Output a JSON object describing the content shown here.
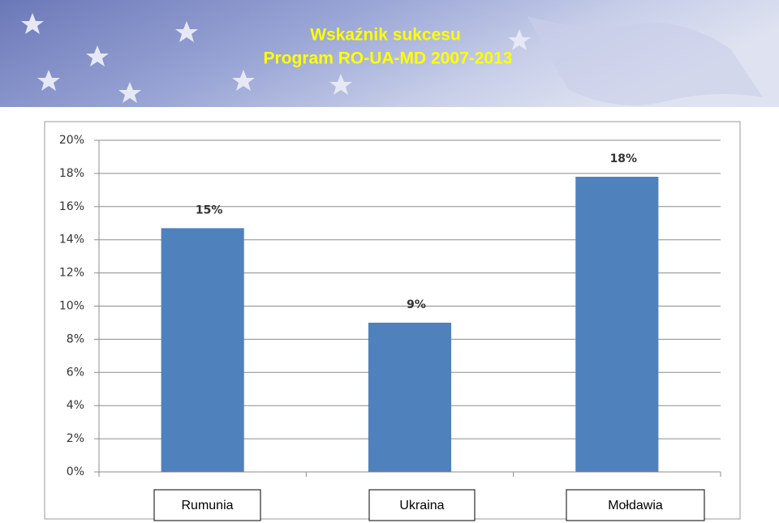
{
  "chart_data": {
    "type": "bar",
    "title": "Wskaźnik sukcesu",
    "subtitle": "Program  RO-UA-MD 2007-2013",
    "categories": [
      "Rumunia",
      "Ukraina",
      "Mołdawia"
    ],
    "values": [
      14.7,
      9.0,
      17.8
    ],
    "value_labels": [
      "15%",
      "9%",
      "18%"
    ],
    "color": "#4f81bd",
    "ylim": [
      0,
      20
    ],
    "yticks": [
      {
        "value": 0,
        "label": "0%"
      },
      {
        "value": 2,
        "label": "2%"
      },
      {
        "value": 4,
        "label": "4%"
      },
      {
        "value": 6,
        "label": "6%"
      },
      {
        "value": 8,
        "label": "8%"
      },
      {
        "value": 10,
        "label": "10%"
      },
      {
        "value": 12,
        "label": "12%"
      },
      {
        "value": 14,
        "label": "14%"
      },
      {
        "value": 16,
        "label": "16%"
      },
      {
        "value": 18,
        "label": "18%"
      },
      {
        "value": 20,
        "label": "20%"
      }
    ],
    "grid": true
  }
}
